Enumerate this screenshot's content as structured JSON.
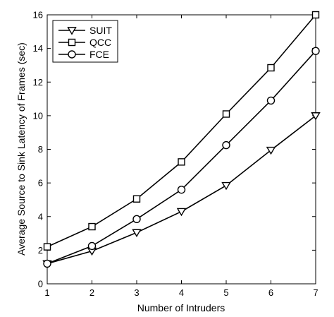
{
  "chart_data": {
    "type": "line",
    "xlabel": "Number of Intruders",
    "ylabel": "Average Source to Sink Latency of Frames (sec)",
    "xlim": [
      1,
      7
    ],
    "ylim": [
      0,
      16
    ],
    "xticks": [
      1,
      2,
      3,
      4,
      5,
      6,
      7
    ],
    "yticks": [
      0,
      2,
      4,
      6,
      8,
      10,
      12,
      14,
      16
    ],
    "grid": false,
    "legend_position": "top-left",
    "x": [
      1,
      2,
      3,
      4,
      5,
      6,
      7
    ],
    "series": [
      {
        "name": "SUIT",
        "marker": "triangle-down",
        "values": [
          1.2,
          1.95,
          3.05,
          4.3,
          5.85,
          7.95,
          10.0
        ]
      },
      {
        "name": "QCC",
        "marker": "square",
        "values": [
          2.2,
          3.4,
          5.05,
          7.25,
          10.1,
          12.85,
          16.0
        ]
      },
      {
        "name": "FCE",
        "marker": "circle",
        "values": [
          1.2,
          2.25,
          3.85,
          5.6,
          8.25,
          10.9,
          13.85
        ]
      }
    ],
    "colors": {
      "line": "#000000",
      "background": "#ffffff"
    }
  }
}
